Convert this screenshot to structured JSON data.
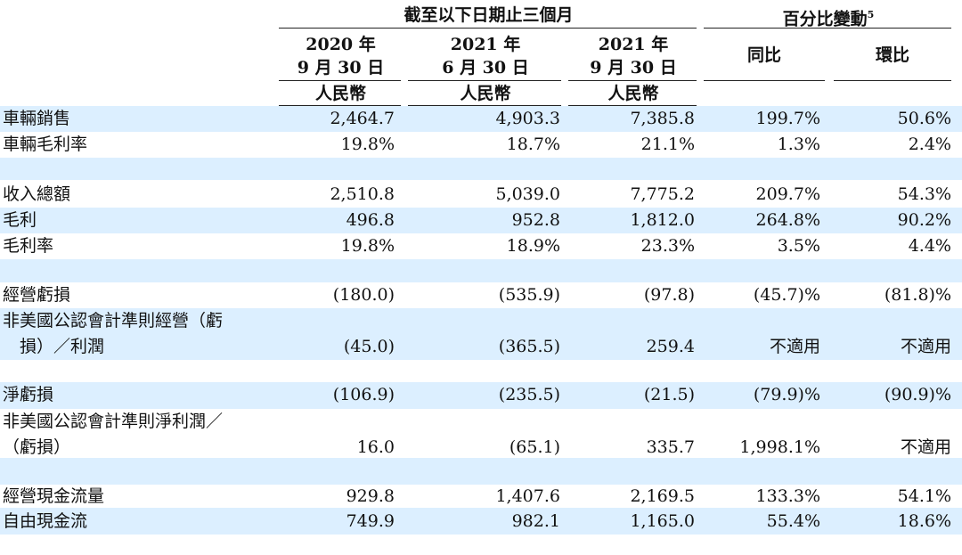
{
  "header": {
    "group_left": "截至以下日期止三個月",
    "group_right": "百分比變動",
    "group_right_sup": "5",
    "col0": {
      "line1": "2020 年",
      "line2": "9 月 30 日",
      "currency": "人民幣"
    },
    "col1": {
      "line1": "2021 年",
      "line2": "6 月 30 日",
      "currency": "人民幣"
    },
    "col2": {
      "line1": "2021 年",
      "line2": "9 月 30 日",
      "currency": "人民幣"
    },
    "col3": "同比",
    "col4": "環比"
  },
  "rows": [
    {
      "label": "車輛銷售",
      "values": [
        "2,464.7",
        "4,903.3",
        "7,385.8",
        "199.7%",
        "50.6%"
      ]
    },
    {
      "label": "車輛毛利率",
      "values": [
        "19.8%",
        "18.7%",
        "21.1%",
        "1.3%",
        "2.4%"
      ]
    },
    {
      "label": "收入總額",
      "values": [
        "2,510.8",
        "5,039.0",
        "7,775.2",
        "209.7%",
        "54.3%"
      ]
    },
    {
      "label": "毛利",
      "values": [
        "496.8",
        "952.8",
        "1,812.0",
        "264.8%",
        "90.2%"
      ]
    },
    {
      "label": "毛利率",
      "values": [
        "19.8%",
        "18.9%",
        "23.3%",
        "3.5%",
        "4.4%"
      ]
    },
    {
      "label": "經營虧損",
      "values": [
        "(180.0)",
        "(535.9)",
        "(97.8)",
        "(45.7)%",
        "(81.8)%"
      ]
    },
    {
      "label_line1": "非美國公認會計準則經營（虧",
      "label_line2": "　損）／利潤",
      "values": [
        "(45.0)",
        "(365.5)",
        "259.4",
        "不適用",
        "不適用"
      ]
    },
    {
      "label": "淨虧損",
      "values": [
        "(106.9)",
        "(235.5)",
        "(21.5)",
        "(79.9)%",
        "(90.9)%"
      ]
    },
    {
      "label_line1": "非美國公認會計準則淨利潤／",
      "label_line2": "（虧損）",
      "values": [
        "16.0",
        "(65.1)",
        "335.7",
        "1,998.1%",
        "不適用"
      ]
    },
    {
      "label": "經營現金流量",
      "values": [
        "929.8",
        "1,407.6",
        "2,169.5",
        "133.3%",
        "54.1%"
      ]
    },
    {
      "label": "自由現金流",
      "values": [
        "749.9",
        "982.1",
        "1,165.0",
        "55.4%",
        "18.6%"
      ]
    }
  ]
}
